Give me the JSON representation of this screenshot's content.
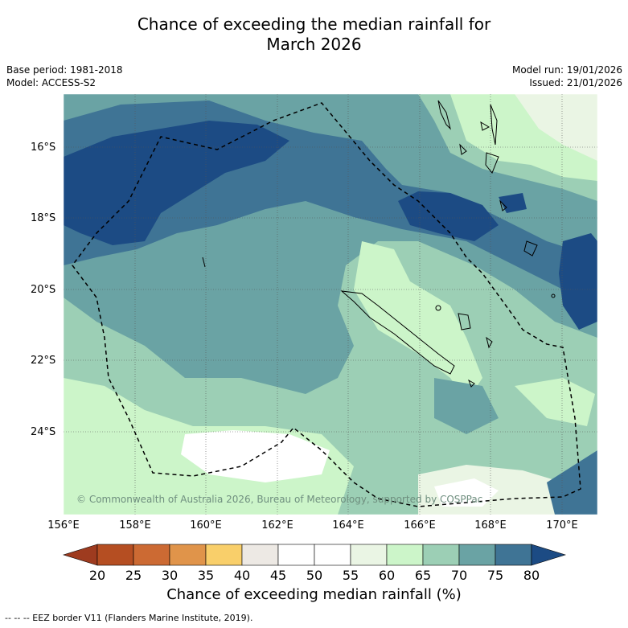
{
  "title_line1": "Chance of exceeding the median rainfall for",
  "title_line2": "March 2026",
  "base_period": "Base period: 1981-2018",
  "model": "Model: ACCESS-S2",
  "model_run": "Model run: 19/01/2026",
  "issued": "Issued: 21/01/2026",
  "lat_labels": [
    "16°S",
    "18°S",
    "20°S",
    "22°S",
    "24°S"
  ],
  "lon_labels": [
    "156°E",
    "158°E",
    "160°E",
    "162°E",
    "164°E",
    "166°E",
    "168°E",
    "170°E"
  ],
  "colorbar": {
    "ticks": [
      "20",
      "25",
      "30",
      "35",
      "40",
      "45",
      "50",
      "55",
      "60",
      "65",
      "70",
      "75",
      "80"
    ],
    "colors": [
      "#9e3b1f",
      "#b54e22",
      "#cc6a33",
      "#e0944a",
      "#f9cf6a",
      "#ede9e4",
      "#ffffff",
      "#ffffff",
      "#eaf5e4",
      "#ccf5c9",
      "#9ccfb5",
      "#6aa3a4",
      "#3f7495",
      "#1c4b84"
    ],
    "title": "Chance of exceeding median rainfall (%)"
  },
  "copyright": "© Commonwealth of Australia 2026, Bureau of Meteorology, supported by COSPPac",
  "footer": "--  --  -- EEZ border V11 (Flanders Marine Institute, 2019).",
  "legend": {
    "eez_border": "EEZ border V11"
  }
}
